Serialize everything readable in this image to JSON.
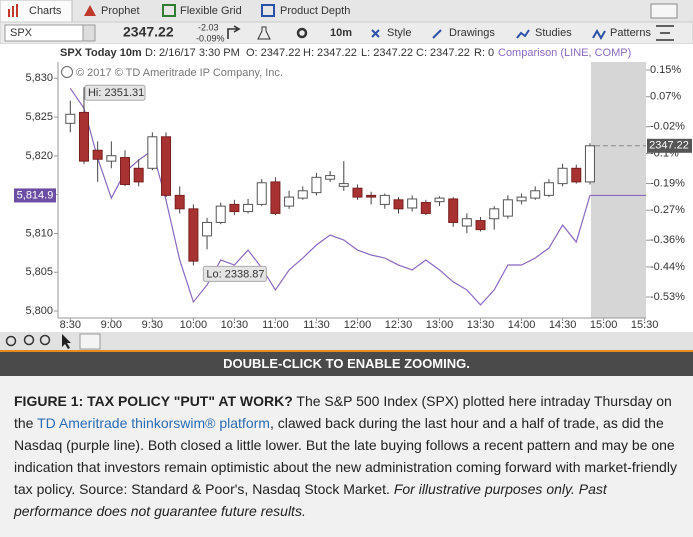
{
  "tabs": [
    "Charts",
    "Prophet",
    "Flexible Grid",
    "Product Depth"
  ],
  "quote": {
    "symbol": "SPX",
    "price": "2347.22",
    "change": "-2.03",
    "change_pct": "-0.09%",
    "aggregation": "10m",
    "menus": [
      "Style",
      "Drawings",
      "Studies",
      "Patterns"
    ]
  },
  "header": {
    "title": "SPX Today 10m",
    "fields": [
      "D: 2/16/17 3:30 PM",
      "O: 2347.22",
      "H: 2347.22",
      "L: 2347.22",
      "C: 2347.22",
      "R: 0"
    ],
    "comparison": "Comparison (LINE, COMP)"
  },
  "chart_data": {
    "type": "candlestick",
    "copyright": "© 2017 © TD Ameritrade IP Company, Inc.",
    "annotations": {
      "high": "Hi: 2351.31",
      "low": "Lo: 2338.87",
      "last_price": "2347.22",
      "last_comparison": "5,814.9"
    },
    "x": [
      "8:30",
      "8:40",
      "8:50",
      "9:00",
      "9:10",
      "9:20",
      "9:30",
      "9:40",
      "9:50",
      "10:00",
      "10:10",
      "10:20",
      "10:30",
      "10:40",
      "10:50",
      "11:00",
      "11:10",
      "11:20",
      "11:30",
      "11:40",
      "11:50",
      "12:00",
      "12:10",
      "12:20",
      "12:30",
      "12:40",
      "12:50",
      "13:00",
      "13:10",
      "13:20",
      "13:30",
      "13:40",
      "13:50",
      "14:00",
      "14:10",
      "14:20",
      "14:30",
      "14:40",
      "14:50"
    ],
    "xlim": [
      "8:21",
      "15:31"
    ],
    "xticks": [
      "8:30",
      "9:00",
      "9:30",
      "10:00",
      "10:30",
      "11:00",
      "11:30",
      "12:00",
      "12:30",
      "13:00",
      "13:30",
      "14:00",
      "14:30",
      "15:00",
      "15:30"
    ],
    "ylim": [
      5799.1,
      5832.1
    ],
    "yticks": [
      {
        "value": 5830,
        "label": "5,830"
      },
      {
        "value": 5825,
        "label": "5,825"
      },
      {
        "value": 5820,
        "label": "5,820"
      },
      {
        "value": 5815,
        "label": "5,815"
      },
      {
        "value": 5810,
        "label": "5,810"
      },
      {
        "value": 5805,
        "label": "5,805"
      },
      {
        "value": 5800,
        "label": "5,800"
      }
    ],
    "y2lim": [
      2335.2,
      2353.07
    ],
    "pctlim": [
      -0.593,
      0.174
    ],
    "pctticks": [
      {
        "value": 0.15,
        "label": "0.15%"
      },
      {
        "value": 0.07,
        "label": "0.07%"
      },
      {
        "value": -0.02,
        "label": "-0.02%"
      },
      {
        "value": -0.1,
        "label": "-0.1%"
      },
      {
        "value": -0.19,
        "label": "-0.19%"
      },
      {
        "value": -0.27,
        "label": "-0.27%"
      },
      {
        "value": -0.36,
        "label": "-0.36%"
      },
      {
        "value": -0.44,
        "label": "-0.44%"
      },
      {
        "value": -0.53,
        "label": "-0.53%"
      }
    ],
    "candles": {
      "axis": "y2",
      "up_color": "#ffffff",
      "down_color": "#a83232",
      "open": [
        2348.79,
        2349.55,
        2346.91,
        2346.15,
        2346.4,
        2345.65,
        2345.65,
        2347.85,
        2343.76,
        2342.82,
        2340.93,
        2341.87,
        2343.13,
        2342.63,
        2343.13,
        2344.7,
        2343.01,
        2343.57,
        2343.95,
        2344.89,
        2344.39,
        2344.26,
        2343.76,
        2343.13,
        2343.45,
        2342.88,
        2343.26,
        2343.32,
        2343.51,
        2341.62,
        2342.0,
        2342.13,
        2342.31,
        2343.38,
        2343.57,
        2343.76,
        2344.58,
        2345.65,
        2344.7
      ],
      "high": [
        2350.37,
        2351.31,
        2347.53,
        2347.53,
        2346.91,
        2346.28,
        2348.16,
        2348.16,
        2344.39,
        2343.13,
        2342.19,
        2343.26,
        2343.45,
        2343.51,
        2344.89,
        2345.02,
        2344.08,
        2344.39,
        2345.33,
        2345.46,
        2346.15,
        2344.52,
        2344.01,
        2343.89,
        2343.64,
        2343.76,
        2343.45,
        2343.7,
        2343.64,
        2342.5,
        2342.25,
        2343.01,
        2343.76,
        2343.89,
        2344.39,
        2344.89,
        2345.96,
        2345.9,
        2347.4
      ],
      "low": [
        2348.16,
        2345.96,
        2344.7,
        2345.65,
        2344.39,
        2344.39,
        2345.52,
        2343.64,
        2342.5,
        2338.87,
        2339.99,
        2341.75,
        2342.38,
        2342.5,
        2343.01,
        2342.38,
        2342.82,
        2343.45,
        2343.76,
        2344.7,
        2344.08,
        2343.45,
        2343.13,
        2342.82,
        2342.5,
        2342.63,
        2342.38,
        2343.01,
        2341.56,
        2341.12,
        2341.24,
        2341.37,
        2342.13,
        2343.13,
        2343.45,
        2343.64,
        2344.39,
        2344.58,
        2344.52
      ],
      "close": [
        2349.42,
        2346.15,
        2346.28,
        2346.53,
        2344.52,
        2344.7,
        2347.85,
        2343.76,
        2342.82,
        2339.17,
        2341.87,
        2343.01,
        2342.63,
        2343.13,
        2344.64,
        2342.5,
        2343.64,
        2344.08,
        2345.02,
        2345.14,
        2344.58,
        2343.64,
        2343.64,
        2343.76,
        2342.82,
        2343.51,
        2342.5,
        2343.57,
        2341.87,
        2342.13,
        2341.37,
        2342.82,
        2343.45,
        2343.64,
        2344.08,
        2344.64,
        2345.65,
        2344.7,
        2347.22
      ]
    },
    "comparison": {
      "axis": "y",
      "color": "#8a68c0",
      "values": [
        5828.71,
        5826.14,
        5819.7,
        5814.56,
        5817.9,
        5819.45,
        5820.73,
        5814.3,
        5806.58,
        5801.17,
        5803.36,
        5806.58,
        5805.93,
        5807.86,
        5805.55,
        5802.72,
        5805.29,
        5806.83,
        5808.51,
        5809.79,
        5809.15,
        5807.86,
        5807.22,
        5806.83,
        5805.93,
        5805.29,
        5806.58,
        5805.29,
        5803.75,
        5802.72,
        5800.79,
        5802.72,
        5805.93,
        5805.93,
        5806.83,
        5808.12,
        5811.08,
        5808.89,
        5814.9
      ]
    }
  },
  "banner": "DOUBLE-CLICK TO ENABLE ZOOMING.",
  "caption": {
    "lead": "FIGURE 1: TAX POLICY \"PUT\" AT WORK?",
    "before_link": " The S&P 500 Index (SPX) plotted here intraday Thursday on the ",
    "link": "TD Ameritrade thinkorswim® platform",
    "after_link": ", clawed back during the last hour and a half of trade, as did the Nasdaq (purple line). Both closed a little lower. But the late buying follows a recent pattern and may be one indication that investors remain optimistic about the new administration coming forward with market-friendly tax policy. Source: Standard & Poor's, Nasdaq Stock Market. ",
    "note": "For illustrative purposes only. Past performance does not guarantee future results."
  }
}
